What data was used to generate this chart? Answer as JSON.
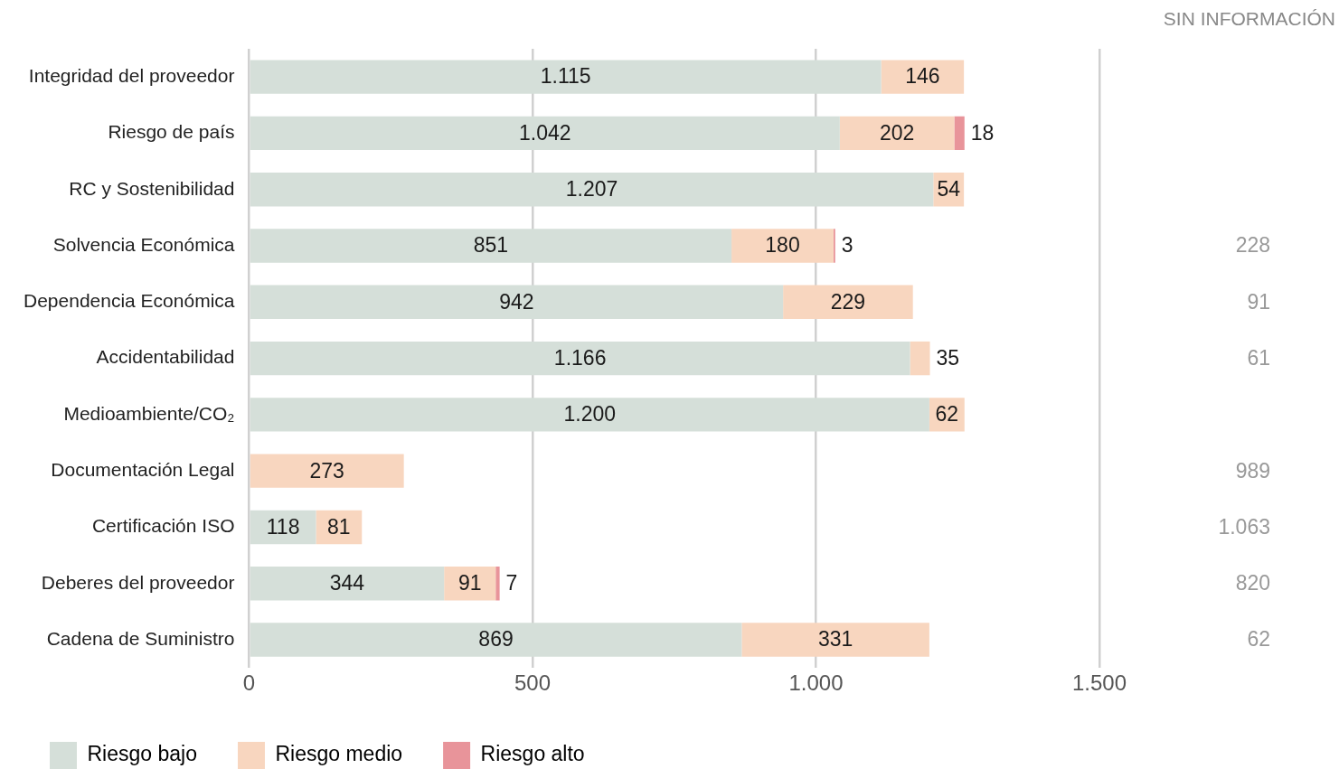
{
  "chart_data": {
    "type": "bar",
    "orientation": "horizontal",
    "stacked": true,
    "categories": [
      "Integridad del proveedor",
      "Riesgo de país",
      "RC y Sostenibilidad",
      "Solvencia Económica",
      "Dependencia Económica",
      "Accidentabilidad",
      "Medioambiente/CO₂",
      "Documentación Legal",
      "Certificación ISO",
      "Deberes del proveedor",
      "Cadena de Suministro"
    ],
    "series": [
      {
        "name": "Riesgo bajo",
        "color": "#d5dfd9",
        "values": [
          1115,
          1042,
          1207,
          851,
          942,
          1166,
          1200,
          0,
          118,
          344,
          869
        ],
        "value_labels": [
          "1.115",
          "1.042",
          "1.207",
          "851",
          "942",
          "1.166",
          "1.200",
          null,
          "118",
          "344",
          "869"
        ]
      },
      {
        "name": "Riesgo medio",
        "color": "#f8d6bf",
        "values": [
          146,
          202,
          54,
          180,
          229,
          35,
          62,
          273,
          81,
          91,
          331
        ],
        "value_labels": [
          "146",
          "202",
          "54",
          "180",
          "229",
          "35",
          "62",
          "273",
          "81",
          "91",
          "331"
        ]
      },
      {
        "name": "Riesgo alto",
        "color": "#e8949a",
        "values": [
          0,
          18,
          0,
          3,
          0,
          0,
          0,
          0,
          0,
          7,
          0
        ],
        "value_labels": [
          null,
          "18",
          null,
          "3",
          null,
          null,
          null,
          null,
          null,
          "7",
          null
        ]
      }
    ],
    "xlim": [
      0,
      1500
    ],
    "xticks": [
      0,
      500,
      {
        "value": 1000,
        "label": "1.000"
      },
      {
        "value": 1500,
        "label": "1.500"
      }
    ],
    "grid": "x",
    "legend": "bottom left",
    "annotations": [
      "SIN INFORMACIÓN",
      "\n\n\n228\n91\n61\n\n989\n1.063\n820\n62"
    ]
  }
}
